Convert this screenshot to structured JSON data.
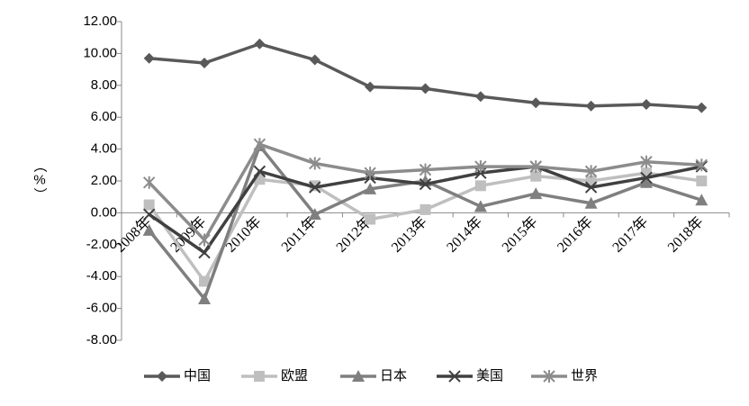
{
  "chart_data": {
    "type": "line",
    "y_label": "（%）",
    "categories": [
      "2008年",
      "2009年",
      "2010年",
      "2011年",
      "2012年",
      "2013年",
      "2014年",
      "2015年",
      "2016年",
      "2017年",
      "2018年"
    ],
    "series": [
      {
        "name": "中国",
        "color": "#595959",
        "marker": "diamond",
        "values": [
          9.7,
          9.4,
          10.6,
          9.6,
          7.9,
          7.8,
          7.3,
          6.9,
          6.7,
          6.8,
          6.6
        ]
      },
      {
        "name": "欧盟",
        "color": "#bfbfbf",
        "marker": "square",
        "values": [
          0.5,
          -4.3,
          2.1,
          1.7,
          -0.4,
          0.2,
          1.7,
          2.3,
          2.0,
          2.5,
          2.0
        ]
      },
      {
        "name": "日本",
        "color": "#7f7f7f",
        "marker": "triangle",
        "values": [
          -1.1,
          -5.4,
          4.2,
          -0.1,
          1.5,
          2.0,
          0.4,
          1.2,
          0.6,
          1.9,
          0.8
        ]
      },
      {
        "name": "美国",
        "color": "#404040",
        "marker": "x",
        "values": [
          -0.1,
          -2.5,
          2.6,
          1.6,
          2.2,
          1.8,
          2.5,
          2.9,
          1.6,
          2.2,
          2.9
        ]
      },
      {
        "name": "世界",
        "color": "#8c8c8c",
        "marker": "star",
        "values": [
          1.9,
          -1.7,
          4.3,
          3.1,
          2.5,
          2.7,
          2.9,
          2.9,
          2.6,
          3.2,
          3.0
        ]
      }
    ],
    "ylim": [
      -8,
      12
    ],
    "yticks": [
      {
        "value": -8,
        "label": "-8.00"
      },
      {
        "value": -6,
        "label": "-6.00"
      },
      {
        "value": -4,
        "label": "-4.00"
      },
      {
        "value": -2,
        "label": "-2.00"
      },
      {
        "value": 0,
        "label": "0.00"
      },
      {
        "value": 2,
        "label": "2.00"
      },
      {
        "value": 4,
        "label": "4.00"
      },
      {
        "value": 6,
        "label": "6.00"
      },
      {
        "value": 8,
        "label": "8.00"
      },
      {
        "value": 10,
        "label": "10.00"
      },
      {
        "value": 12,
        "label": "12.00"
      }
    ],
    "legend": "bottom"
  }
}
